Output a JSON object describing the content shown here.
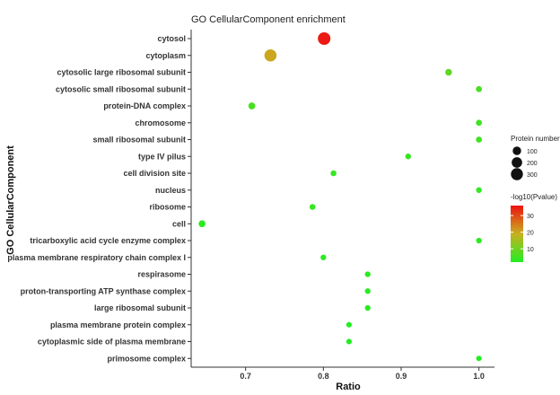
{
  "chart_data": {
    "type": "scatter",
    "title": "GO CellularComponent enrichment",
    "xlabel": "Ratio",
    "ylabel": "GO CellularComponent",
    "xlim": [
      0.63,
      1.02
    ],
    "xticks": [
      0.7,
      0.8,
      0.9,
      1.0
    ],
    "xtick_labels": [
      "0.7",
      "0.8",
      "0.9",
      "1.0"
    ],
    "grid": false,
    "points": [
      {
        "category": "cytosol",
        "ratio": 0.801,
        "protein_number": 340,
        "neg_log10_p": 35
      },
      {
        "category": "cytoplasm",
        "ratio": 0.732,
        "protein_number": 310,
        "neg_log10_p": 20
      },
      {
        "category": "cytosolic large ribosomal subunit",
        "ratio": 0.961,
        "protein_number": 40,
        "neg_log10_p": 8
      },
      {
        "category": "cytosolic small ribosomal subunit",
        "ratio": 1.0,
        "protein_number": 25,
        "neg_log10_p": 6
      },
      {
        "category": "protein-DNA complex",
        "ratio": 0.708,
        "protein_number": 45,
        "neg_log10_p": 6
      },
      {
        "category": "chromosome",
        "ratio": 1.0,
        "protein_number": 25,
        "neg_log10_p": 5
      },
      {
        "category": "small ribosomal subunit",
        "ratio": 1.0,
        "protein_number": 25,
        "neg_log10_p": 5
      },
      {
        "category": "type IV pilus",
        "ratio": 0.909,
        "protein_number": 20,
        "neg_log10_p": 4
      },
      {
        "category": "cell division site",
        "ratio": 0.813,
        "protein_number": 22,
        "neg_log10_p": 4
      },
      {
        "category": "nucleus",
        "ratio": 1.0,
        "protein_number": 20,
        "neg_log10_p": 4
      },
      {
        "category": "ribosome",
        "ratio": 0.786,
        "protein_number": 22,
        "neg_log10_p": 4
      },
      {
        "category": "cell",
        "ratio": 0.644,
        "protein_number": 45,
        "neg_log10_p": 3
      },
      {
        "category": "tricarboxylic acid cycle enzyme complex",
        "ratio": 1.0,
        "protein_number": 18,
        "neg_log10_p": 3
      },
      {
        "category": "plasma membrane respiratory chain complex I",
        "ratio": 0.8,
        "protein_number": 18,
        "neg_log10_p": 3
      },
      {
        "category": "respirasome",
        "ratio": 0.857,
        "protein_number": 18,
        "neg_log10_p": 3
      },
      {
        "category": "proton-transporting ATP synthase complex",
        "ratio": 0.857,
        "protein_number": 18,
        "neg_log10_p": 3
      },
      {
        "category": "large ribosomal subunit",
        "ratio": 0.857,
        "protein_number": 18,
        "neg_log10_p": 3
      },
      {
        "category": "plasma membrane protein complex",
        "ratio": 0.833,
        "protein_number": 16,
        "neg_log10_p": 2
      },
      {
        "category": "cytoplasmic side of plasma membrane",
        "ratio": 0.833,
        "protein_number": 16,
        "neg_log10_p": 2
      },
      {
        "category": "primosome complex",
        "ratio": 1.0,
        "protein_number": 15,
        "neg_log10_p": 2
      }
    ],
    "size_legend": {
      "title": "Protein number",
      "values": [
        100,
        200,
        300
      ],
      "labels": [
        "100",
        "200",
        "300"
      ]
    },
    "color_legend": {
      "title": "-log10(Pvalue)",
      "range": [
        2,
        36
      ],
      "ticks": [
        10,
        20,
        30
      ],
      "tick_labels": [
        "10",
        "20",
        "30"
      ],
      "low_color": "#22ee22",
      "high_color": "#ee1111"
    },
    "legend_position": "right"
  }
}
